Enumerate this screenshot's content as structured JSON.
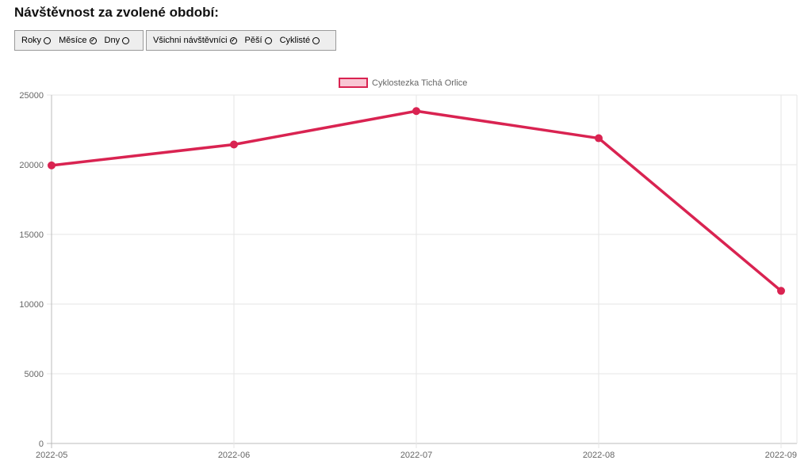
{
  "header": {
    "title": "Návštěvnost za zvolené období:"
  },
  "period_filter": {
    "options": [
      {
        "label": "Roky",
        "checked": false
      },
      {
        "label": "Měsíce",
        "checked": true
      },
      {
        "label": "Dny",
        "checked": false
      }
    ]
  },
  "visitor_filter": {
    "options": [
      {
        "label": "Všichni návštěvníci",
        "checked": true
      },
      {
        "label": "Pěší",
        "checked": false
      },
      {
        "label": "Cyklisté",
        "checked": false
      }
    ]
  },
  "colors": {
    "series": "#d92351",
    "series_fill": "#f8c7d4",
    "grid": "#e6e6e6",
    "tick": "#666666"
  },
  "chart_data": {
    "type": "line",
    "x": [
      "2022-05",
      "2022-06",
      "2022-07",
      "2022-08",
      "2022-09"
    ],
    "series": [
      {
        "name": "Cyklostezka Tichá Orlice",
        "values": [
          19950,
          21450,
          23850,
          21900,
          10950
        ]
      }
    ],
    "ylim": [
      0,
      25000
    ],
    "yticks": [
      0,
      5000,
      10000,
      15000,
      20000,
      25000
    ],
    "grid": true,
    "legend_position": "top-center"
  }
}
